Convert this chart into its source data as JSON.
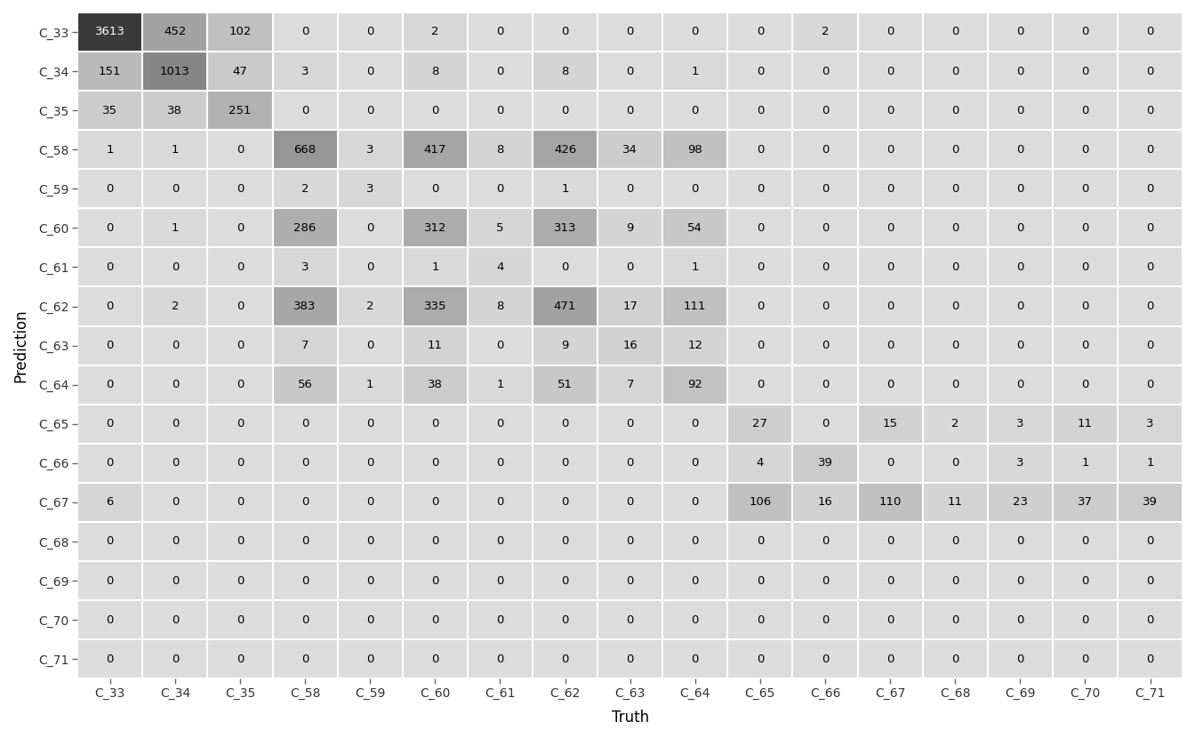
{
  "labels": [
    "C_33",
    "C_34",
    "C_35",
    "C_58",
    "C_59",
    "C_60",
    "C_61",
    "C_62",
    "C_63",
    "C_64",
    "C_65",
    "C_66",
    "C_67",
    "C_68",
    "C_69",
    "C_70",
    "C_71"
  ],
  "matrix": [
    [
      3613,
      452,
      102,
      0,
      0,
      2,
      0,
      0,
      0,
      0,
      0,
      2,
      0,
      0,
      0,
      0,
      0
    ],
    [
      151,
      1013,
      47,
      3,
      0,
      8,
      0,
      8,
      0,
      1,
      0,
      0,
      0,
      0,
      0,
      0,
      0
    ],
    [
      35,
      38,
      251,
      0,
      0,
      0,
      0,
      0,
      0,
      0,
      0,
      0,
      0,
      0,
      0,
      0,
      0
    ],
    [
      1,
      1,
      0,
      668,
      3,
      417,
      8,
      426,
      34,
      98,
      0,
      0,
      0,
      0,
      0,
      0,
      0
    ],
    [
      0,
      0,
      0,
      2,
      3,
      0,
      0,
      1,
      0,
      0,
      0,
      0,
      0,
      0,
      0,
      0,
      0
    ],
    [
      0,
      1,
      0,
      286,
      0,
      312,
      5,
      313,
      9,
      54,
      0,
      0,
      0,
      0,
      0,
      0,
      0
    ],
    [
      0,
      0,
      0,
      3,
      0,
      1,
      4,
      0,
      0,
      1,
      0,
      0,
      0,
      0,
      0,
      0,
      0
    ],
    [
      0,
      2,
      0,
      383,
      2,
      335,
      8,
      471,
      17,
      111,
      0,
      0,
      0,
      0,
      0,
      0,
      0
    ],
    [
      0,
      0,
      0,
      7,
      0,
      11,
      0,
      9,
      16,
      12,
      0,
      0,
      0,
      0,
      0,
      0,
      0
    ],
    [
      0,
      0,
      0,
      56,
      1,
      38,
      1,
      51,
      7,
      92,
      0,
      0,
      0,
      0,
      0,
      0,
      0
    ],
    [
      0,
      0,
      0,
      0,
      0,
      0,
      0,
      0,
      0,
      0,
      27,
      0,
      15,
      2,
      3,
      11,
      3
    ],
    [
      0,
      0,
      0,
      0,
      0,
      0,
      0,
      0,
      0,
      0,
      4,
      39,
      0,
      0,
      3,
      1,
      1
    ],
    [
      6,
      0,
      0,
      0,
      0,
      0,
      0,
      0,
      0,
      0,
      106,
      16,
      110,
      11,
      23,
      37,
      39
    ],
    [
      0,
      0,
      0,
      0,
      0,
      0,
      0,
      0,
      0,
      0,
      0,
      0,
      0,
      0,
      0,
      0,
      0
    ],
    [
      0,
      0,
      0,
      0,
      0,
      0,
      0,
      0,
      0,
      0,
      0,
      0,
      0,
      0,
      0,
      0,
      0
    ],
    [
      0,
      0,
      0,
      0,
      0,
      0,
      0,
      0,
      0,
      0,
      0,
      0,
      0,
      0,
      0,
      0,
      0
    ],
    [
      0,
      0,
      0,
      0,
      0,
      0,
      0,
      0,
      0,
      0,
      0,
      0,
      0,
      0,
      0,
      0,
      0
    ]
  ],
  "xlabel": "Truth",
  "ylabel": "Prediction",
  "fig_bg": "#ffffff",
  "plot_bg": "#dcdcdc",
  "colormap_low": "#dcdcdc",
  "colormap_high": "#3a3a3a",
  "text_color": "#000000",
  "text_color_light": "#ffffff",
  "fontsize_ticks": 10,
  "fontsize_labels": 12,
  "fontsize_cell": 9.5
}
